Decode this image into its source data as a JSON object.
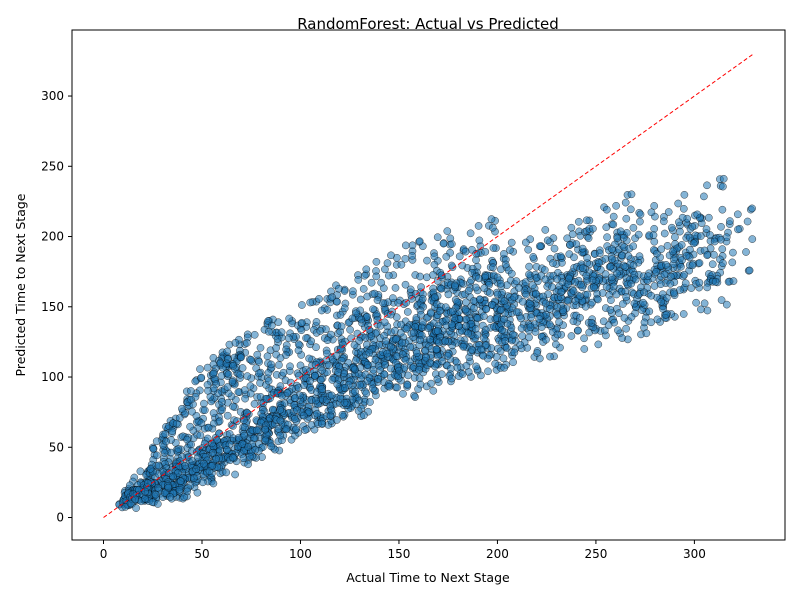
{
  "chart_data": {
    "type": "scatter",
    "title": "RandomForest: Actual vs Predicted",
    "xlabel": "Actual Time to Next Stage",
    "ylabel": "Predicted Time to Next Stage",
    "xlim": [
      -16,
      346
    ],
    "ylim": [
      -16,
      347
    ],
    "xticks": [
      0,
      50,
      100,
      150,
      200,
      250,
      300
    ],
    "yticks": [
      0,
      50,
      100,
      150,
      200,
      250,
      300
    ],
    "grid": false,
    "reference_line": {
      "x": [
        0,
        330
      ],
      "y": [
        0,
        330
      ],
      "color": "#ff0000",
      "style": "dashed"
    },
    "point_color": "#1f77b4",
    "point_edge_color": "#000000",
    "ridges": [
      {
        "x": [
          8,
          30,
          50,
          80,
          100,
          120,
          150,
          180,
          200
        ],
        "y": [
          10,
          55,
          100,
          125,
          135,
          150,
          170,
          185,
          195
        ]
      },
      {
        "x": [
          8,
          30,
          60,
          100,
          150,
          200,
          240,
          270
        ],
        "y": [
          9,
          40,
          80,
          110,
          140,
          165,
          185,
          205
        ]
      },
      {
        "x": [
          10,
          40,
          80,
          120,
          160,
          200,
          250,
          300,
          315
        ],
        "y": [
          10,
          35,
          70,
          105,
          130,
          155,
          180,
          205,
          215
        ]
      },
      {
        "x": [
          10,
          50,
          100,
          150,
          200,
          250,
          300,
          330
        ],
        "y": [
          10,
          40,
          80,
          115,
          145,
          170,
          190,
          200
        ]
      },
      {
        "x": [
          12,
          60,
          120,
          180,
          240,
          290,
          320
        ],
        "y": [
          12,
          40,
          85,
          120,
          150,
          170,
          175
        ]
      },
      {
        "x": [
          15,
          40,
          70,
          100,
          140,
          190,
          240,
          290
        ],
        "y": [
          12,
          20,
          45,
          75,
          105,
          130,
          145,
          162
        ]
      },
      {
        "x": [
          20,
          35,
          50,
          70
        ],
        "y": [
          20,
          65,
          90,
          110
        ]
      }
    ]
  }
}
